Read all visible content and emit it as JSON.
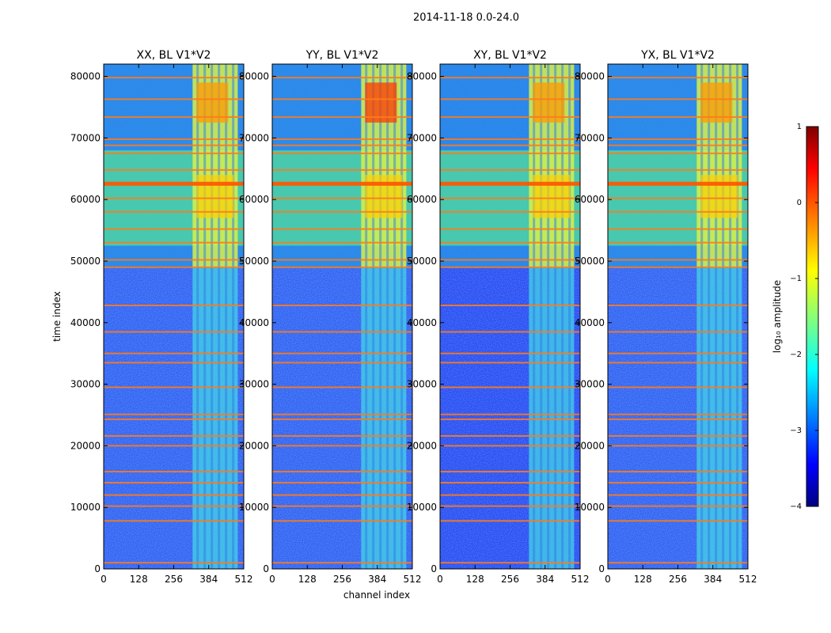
{
  "chart_data": {
    "type": "heatmap",
    "suptitle": "2014-11-18 0.0-24.0",
    "xlabel": "channel index",
    "ylabel": "time index",
    "xlim": [
      0,
      512
    ],
    "ylim": [
      0,
      82000
    ],
    "xticks": [
      0,
      128,
      256,
      384,
      512
    ],
    "yticks": [
      0,
      10000,
      20000,
      30000,
      40000,
      50000,
      60000,
      70000,
      80000
    ],
    "panels": [
      {
        "title": "XX, BL V1*V2"
      },
      {
        "title": "YY, BL V1*V2"
      },
      {
        "title": "XY, BL V1*V2"
      },
      {
        "title": "YX, BL V1*V2"
      }
    ],
    "colorbar": {
      "label": "log₁₀ amplitude",
      "vmin": -4,
      "vmax": 1,
      "ticks": [
        1,
        0,
        -1,
        -2,
        -3,
        -4
      ],
      "tick_labels": [
        "1",
        "0",
        "−1",
        "−2",
        "−3",
        "−4"
      ],
      "colormap": "jet"
    },
    "features": {
      "bright_channel_range": [
        325,
        490
      ],
      "high_level_time_range": [
        49000,
        82000
      ],
      "rfi_rows": [
        1000,
        7800,
        10200,
        12000,
        14000,
        15800,
        20000,
        21600,
        24300,
        25100,
        29500,
        33500,
        35000,
        38500,
        42800,
        49000,
        50200,
        53000,
        55200,
        58000,
        60200,
        62500,
        64800,
        67500,
        68800,
        69800,
        73400,
        76300,
        79800
      ]
    }
  }
}
